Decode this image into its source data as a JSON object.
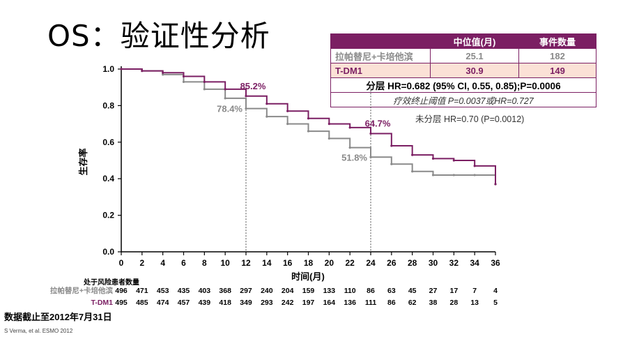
{
  "title": "OS：验证性分析",
  "table": {
    "headers": [
      "",
      "中位值(月)",
      "事件数量"
    ],
    "rows": [
      {
        "label": "拉帕替尼+卡培他滨",
        "median": "25.1",
        "events": "182"
      },
      {
        "label": "T-DM1",
        "median": "30.9",
        "events": "149"
      }
    ],
    "stratified": "分层 HR=0.682 (95% CI, 0.55, 0.85);P=0.0006",
    "threshold": "疗效终止阈值 P=0.0037或HR=0.727"
  },
  "unstratified_note": "未分层 HR=0.70 (P=0.0012)",
  "colors": {
    "lapatinib": "#8a8a8a",
    "tdm1": "#7b1f63"
  },
  "chart_data": {
    "type": "line",
    "xlabel": "时间(月)",
    "ylabel": "生存率",
    "xlim": [
      0,
      36
    ],
    "ylim": [
      0,
      1.0
    ],
    "xticks": [
      "0",
      "2",
      "4",
      "6",
      "8",
      "10",
      "12",
      "14",
      "16",
      "18",
      "20",
      "22",
      "24",
      "26",
      "28",
      "30",
      "32",
      "34",
      "36"
    ],
    "yticks": [
      "0.0",
      "0.2",
      "0.4",
      "0.6",
      "0.8",
      "1.0"
    ],
    "series": [
      {
        "name": "拉帕替尼+卡培他滨",
        "x": [
          0,
          2,
          4,
          6,
          8,
          10,
          12,
          14,
          16,
          18,
          20,
          22,
          24,
          26,
          28,
          30,
          32,
          34,
          36
        ],
        "y": [
          1.0,
          0.99,
          0.97,
          0.93,
          0.89,
          0.84,
          0.784,
          0.74,
          0.7,
          0.66,
          0.62,
          0.57,
          0.518,
          0.48,
          0.44,
          0.42,
          0.42,
          0.42,
          0.37
        ]
      },
      {
        "name": "T-DM1",
        "x": [
          0,
          2,
          4,
          6,
          8,
          10,
          12,
          14,
          16,
          18,
          20,
          22,
          24,
          26,
          28,
          30,
          32,
          34,
          36
        ],
        "y": [
          1.0,
          0.99,
          0.98,
          0.96,
          0.93,
          0.89,
          0.852,
          0.81,
          0.77,
          0.73,
          0.7,
          0.68,
          0.647,
          0.58,
          0.53,
          0.51,
          0.5,
          0.47,
          0.37
        ]
      }
    ],
    "annotations": [
      {
        "text": "85.2%",
        "x": 12,
        "y": 0.852,
        "series": "T-DM1"
      },
      {
        "text": "78.4%",
        "x": 12,
        "y": 0.784,
        "series": "拉帕替尼+卡培他滨"
      },
      {
        "text": "64.7%",
        "x": 24,
        "y": 0.647,
        "series": "T-DM1"
      },
      {
        "text": "51.8%",
        "x": 24,
        "y": 0.518,
        "series": "拉帕替尼+卡培他滨"
      }
    ],
    "reference_lines_x": [
      12,
      24
    ],
    "risk_table": {
      "title": "处于风险患者数量",
      "rows": [
        {
          "label": "拉帕替尼+卡培他滨",
          "values": [
            "496",
            "471",
            "453",
            "435",
            "403",
            "368",
            "297",
            "240",
            "204",
            "159",
            "133",
            "110",
            "86",
            "63",
            "45",
            "27",
            "17",
            "7",
            "4"
          ]
        },
        {
          "label": "T-DM1",
          "values": [
            "495",
            "485",
            "474",
            "457",
            "439",
            "418",
            "349",
            "293",
            "242",
            "197",
            "164",
            "136",
            "111",
            "86",
            "62",
            "38",
            "28",
            "13",
            "5"
          ]
        }
      ]
    }
  },
  "footer": {
    "cutoff": "数据截止至2012年7月31日",
    "source": "S Verma, et al. ESMO 2012"
  }
}
